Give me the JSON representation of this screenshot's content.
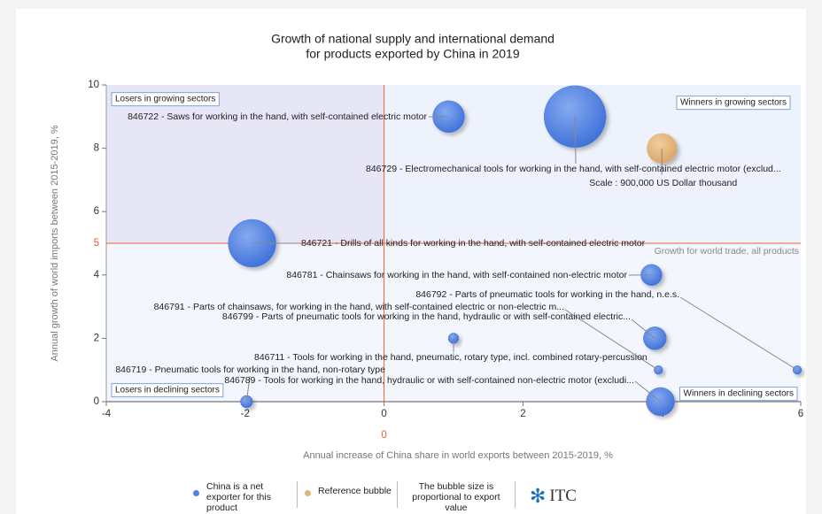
{
  "chart_data": {
    "type": "bubble",
    "title": "Growth of national supply and international demand",
    "subtitle": "for products exported by China in 2019",
    "x_label": "Annual increase of China share in world exports between 2015-2019, %",
    "y_label": "Annual growth of world imports between 2015-2019, %",
    "xlim": [
      -4,
      6
    ],
    "xticks": [
      -4,
      -2,
      0,
      2,
      4,
      6
    ],
    "ylim": [
      0,
      10
    ],
    "yticks": [
      0,
      2,
      4,
      6,
      8,
      10
    ],
    "x_reference": 0,
    "y_reference": 5,
    "y_reference_label": "Growth for world trade, all products",
    "quadrant_labels": {
      "top_left": "Losers in growing sectors",
      "top_right": "Winners in growing sectors",
      "bottom_left": "Losers in declining sectors",
      "bottom_right": "Winners in declining sectors"
    },
    "series": [
      {
        "name": "China is a net exporter for this product",
        "color": "#4f81e3",
        "points": [
          {
            "label": "846722 - Saws for working in the hand, with self-contained electric motor",
            "x": 0.93,
            "y": 9.0,
            "size": 1010000
          },
          {
            "label": "846729 - Electromechanical tools for working in the hand, with self-contained electric motor (exclud...",
            "x": 2.75,
            "y": 9.0,
            "size": 3810000
          },
          {
            "label": "846721 - Drills of all kinds for working in the hand, with self-contained electric motor",
            "x": -1.9,
            "y": 5.0,
            "size": 2270000
          },
          {
            "label": "846781 - Chainsaws for working in the hand, with self-contained non-electric motor",
            "x": 3.85,
            "y": 4.0,
            "size": 450000
          },
          {
            "label": "846792 - Parts of pneumatic tools for working in the hand, n.e.s.",
            "x": 5.95,
            "y": 1.0,
            "size": 78000
          },
          {
            "label": "846791 - Parts of chainsaws, for working in the hand, with self-contained electric or non-electric m...",
            "x": 3.95,
            "y": 1.0,
            "size": 78000
          },
          {
            "label": "846799 - Parts of pneumatic tools for working in the hand, hydraulic or with self-contained electric...",
            "x": 3.9,
            "y": 2.0,
            "size": 530000
          },
          {
            "label": "846711 - Tools for working in the hand, pneumatic, rotary type, incl. combined rotary-percussion",
            "x": 1.0,
            "y": 2.0,
            "size": 112000
          },
          {
            "label": "846719 - Pneumatic tools for working in the hand, non-rotary type",
            "x": -1.98,
            "y": 0.0,
            "size": 153000
          },
          {
            "label": "846789 - Tools for working in the hand, hydraulic or with self-contained non-electric motor (excludi...",
            "x": 3.98,
            "y": 0.0,
            "size": 800000
          }
        ]
      }
    ],
    "reference_bubble": {
      "name": "Reference bubble",
      "color": "#e0b47a",
      "x": 4.0,
      "y": 8.0,
      "size": 900000,
      "label": "Scale : 900,000 US Dollar thousand"
    },
    "size_note": "The bubble size is proportional to export value",
    "logo": "ITC"
  }
}
